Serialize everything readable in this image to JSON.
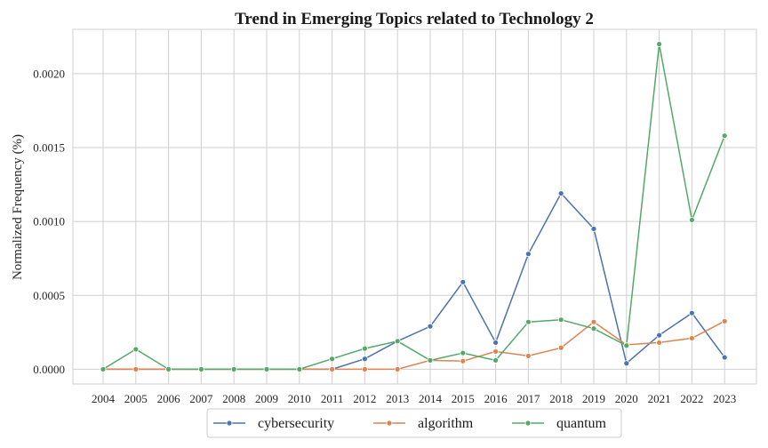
{
  "chart_data": {
    "type": "line",
    "title": "Trend in Emerging Topics related to Technology 2",
    "xlabel": "",
    "ylabel": "Normalized Frequency (%)",
    "ylim": [
      -0.0001,
      0.0023
    ],
    "yticks": [
      "0.0000",
      "0.0005",
      "0.0010",
      "0.0015",
      "0.0020"
    ],
    "x": [
      "2004",
      "2005",
      "2006",
      "2007",
      "2008",
      "2009",
      "2010",
      "2011",
      "2012",
      "2013",
      "2014",
      "2015",
      "2016",
      "2017",
      "2018",
      "2019",
      "2020",
      "2021",
      "2022",
      "2023"
    ],
    "series": [
      {
        "name": "cybersecurity",
        "color": "#4c72b0",
        "values": [
          0,
          0,
          0,
          0,
          0,
          0,
          0,
          0,
          7e-05,
          0.00019,
          0.00029,
          0.00059,
          0.00018,
          0.00078,
          0.00119,
          0.00095,
          4e-05,
          0.00023,
          0.00038,
          8e-05
        ]
      },
      {
        "name": "algorithm",
        "color": "#dd8452",
        "values": [
          0,
          0,
          0,
          0,
          0,
          0,
          0,
          0,
          0,
          0,
          6e-05,
          5.5e-05,
          0.00012,
          9e-05,
          0.000145,
          0.00032,
          0.000165,
          0.00018,
          0.00021,
          0.000325
        ]
      },
      {
        "name": "quantum",
        "color": "#55a868",
        "values": [
          0,
          0.000135,
          0,
          0,
          0,
          0,
          0,
          7e-05,
          0.00014,
          0.00019,
          6e-05,
          0.00011,
          6e-05,
          0.00032,
          0.000335,
          0.000275,
          0.00016,
          0.0022,
          0.00101,
          0.00158
        ]
      }
    ],
    "grid": true,
    "legend": "bottom-center"
  }
}
